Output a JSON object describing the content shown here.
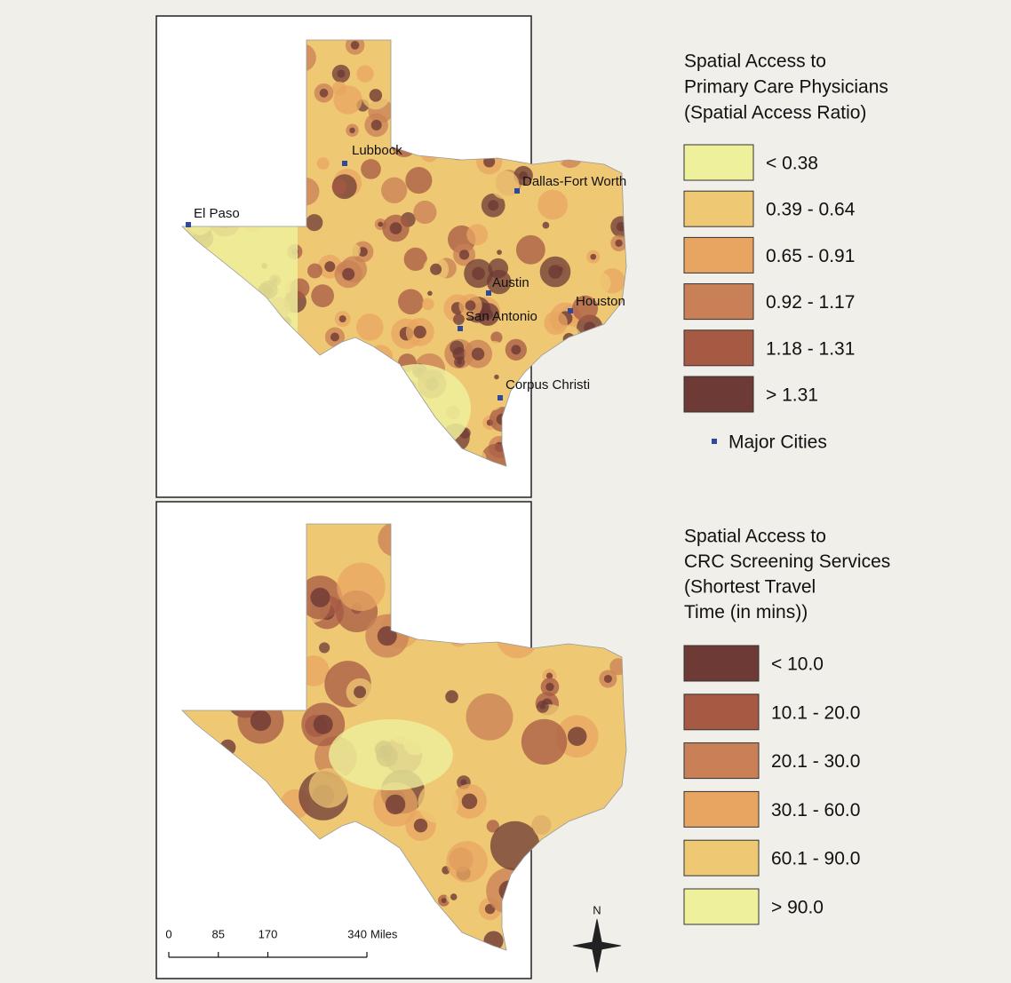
{
  "maps": [
    {
      "legend_title_lines": [
        "Spatial Access to",
        "Primary Care Physicians",
        "(Spatial Access Ratio)"
      ],
      "legend_items": [
        {
          "label": "< 0.38",
          "color": "#eef09c"
        },
        {
          "label": "0.39 - 0.64",
          "color": "#efc874"
        },
        {
          "label": "0.65 - 0.91",
          "color": "#e8a562"
        },
        {
          "label": "0.92 - 1.17",
          "color": "#c98056"
        },
        {
          "label": "1.18 - 1.31",
          "color": "#a65a44"
        },
        {
          "label": "> 1.31",
          "color": "#6e3a35"
        }
      ],
      "cities_legend": "Major Cities",
      "cities": [
        "Lubbock",
        "El Paso",
        "Dallas-Fort Worth",
        "Austin",
        "Houston",
        "San Antonio",
        "Corpus Christi"
      ]
    },
    {
      "legend_title_lines": [
        "Spatial Access to",
        "CRC Screening Services",
        "(Shortest Travel",
        "Time (in mins))"
      ],
      "legend_items": [
        {
          "label": "< 10.0",
          "color": "#6e3a35"
        },
        {
          "label": "10.1 - 20.0",
          "color": "#a65a44"
        },
        {
          "label": "20.1 - 30.0",
          "color": "#c98056"
        },
        {
          "label": "30.1 - 60.0",
          "color": "#e8a562"
        },
        {
          "label": "60.1 - 90.0",
          "color": "#efc874"
        },
        {
          "label": "> 90.0",
          "color": "#eef09c"
        }
      ]
    }
  ],
  "scale_bar": {
    "ticks": [
      0,
      85,
      170,
      340
    ],
    "unit": "Miles"
  },
  "north_label": "N"
}
